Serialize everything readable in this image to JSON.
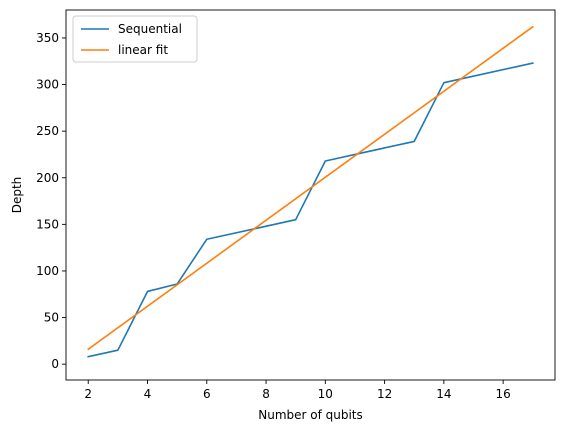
{
  "chart_data": {
    "type": "line",
    "title": "",
    "xlabel": "Number of qubits",
    "ylabel": "Depth",
    "xlim": [
      1.25,
      17.75
    ],
    "ylim": [
      -17,
      380
    ],
    "xticks": [
      2,
      4,
      6,
      8,
      10,
      12,
      14,
      16
    ],
    "yticks": [
      0,
      50,
      100,
      150,
      200,
      250,
      300,
      350
    ],
    "grid": false,
    "legend_position": "top-left",
    "series": [
      {
        "name": "Sequential",
        "color": "#1f77b4",
        "x": [
          2,
          3,
          4,
          5,
          6,
          9,
          10,
          13,
          14,
          17
        ],
        "y": [
          8,
          15,
          78,
          86,
          134,
          155,
          218,
          239,
          302,
          323
        ]
      },
      {
        "name": "linear fit",
        "color": "#ff7f0e",
        "x": [
          2,
          17
        ],
        "y": [
          16,
          362
        ]
      }
    ]
  }
}
